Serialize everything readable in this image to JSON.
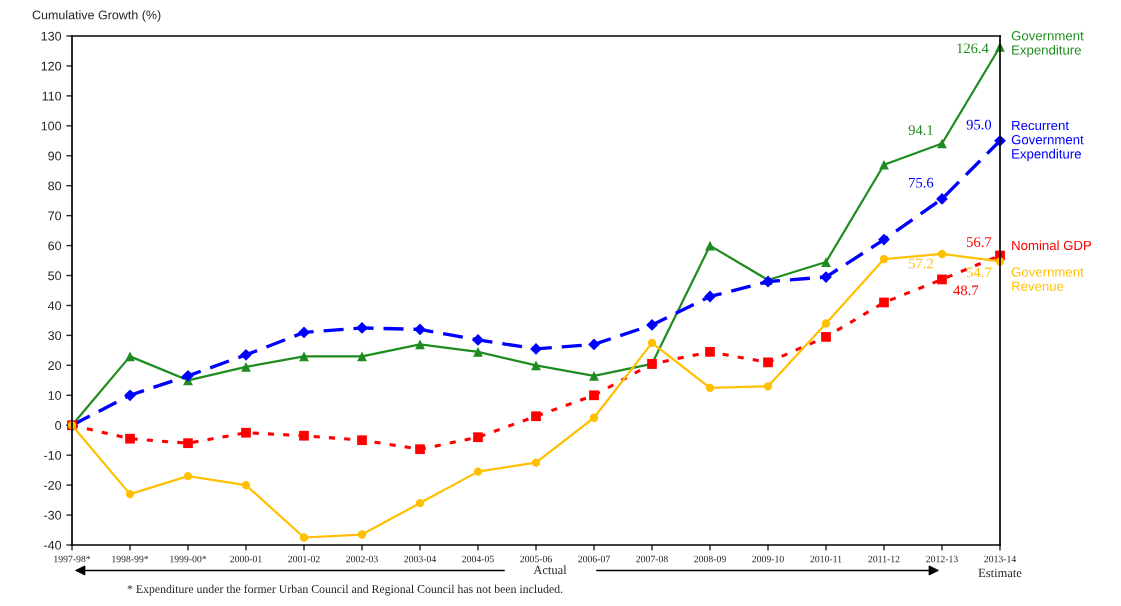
{
  "chart_data": {
    "type": "line",
    "ylabel": "Cumulative Growth (%)",
    "categories": [
      "1997-98*",
      "1998-99*",
      "1999-00*",
      "2000-01",
      "2001-02",
      "2002-03",
      "2003-04",
      "2004-05",
      "2005-06",
      "2006-07",
      "2007-08",
      "2008-09",
      "2009-10",
      "2010-11",
      "2011-12",
      "2012-13",
      "2013-14"
    ],
    "series": [
      {
        "name": "Government Expenditure",
        "color": "#1e8c1e",
        "marker": "triangle",
        "line_style": "solid",
        "values": [
          0,
          23,
          15,
          19.5,
          23,
          23,
          27,
          24.5,
          20,
          16.5,
          20.5,
          60,
          48.5,
          54.5,
          87,
          94.1,
          126.4
        ],
        "value_labels": [
          null,
          null,
          null,
          null,
          null,
          null,
          null,
          null,
          null,
          null,
          null,
          null,
          null,
          null,
          null,
          "94.1",
          "126.4"
        ]
      },
      {
        "name": "Recurrent Government Expenditure",
        "color": "#0000ff",
        "marker": "diamond",
        "line_style": "dashed",
        "values": [
          0,
          10,
          16.5,
          23.5,
          31,
          32.5,
          32,
          28.5,
          25.5,
          27,
          33.5,
          43,
          48,
          49.5,
          62,
          75.6,
          95.0
        ],
        "value_labels": [
          null,
          null,
          null,
          null,
          null,
          null,
          null,
          null,
          null,
          null,
          null,
          null,
          null,
          null,
          null,
          "75.6",
          "95.0"
        ]
      },
      {
        "name": "Nominal GDP",
        "color": "#ff0000",
        "marker": "square",
        "line_style": "dotted",
        "values": [
          0,
          -4.5,
          -6,
          -2.5,
          -3.5,
          -5,
          -8,
          -4,
          3,
          10,
          20.5,
          24.5,
          21,
          29.5,
          41,
          48.7,
          56.7
        ],
        "value_labels": [
          null,
          null,
          null,
          null,
          null,
          null,
          null,
          null,
          null,
          null,
          null,
          null,
          null,
          null,
          null,
          "48.7",
          "56.7"
        ]
      },
      {
        "name": "Government Revenue",
        "color": "#ffc000",
        "marker": "circle",
        "line_style": "solid",
        "values": [
          0,
          -23,
          -17,
          -20,
          -37.5,
          -36.5,
          -26,
          -15.5,
          -12.5,
          2.5,
          27.5,
          12.5,
          13,
          34,
          55.5,
          57.2,
          54.7
        ],
        "value_labels": [
          null,
          null,
          null,
          null,
          null,
          null,
          null,
          null,
          null,
          null,
          null,
          null,
          null,
          null,
          null,
          "57.2",
          "54.7"
        ]
      }
    ],
    "ylim": [
      -40,
      130
    ],
    "yticks": [
      -40,
      -30,
      -20,
      -10,
      0,
      10,
      20,
      30,
      40,
      50,
      60,
      70,
      80,
      90,
      100,
      110,
      120,
      130
    ],
    "grid": false,
    "legend": false,
    "annotations": [
      "Actual",
      "Estimate",
      "* Expenditure under the former Urban Council and Regional Council has not been included."
    ]
  }
}
